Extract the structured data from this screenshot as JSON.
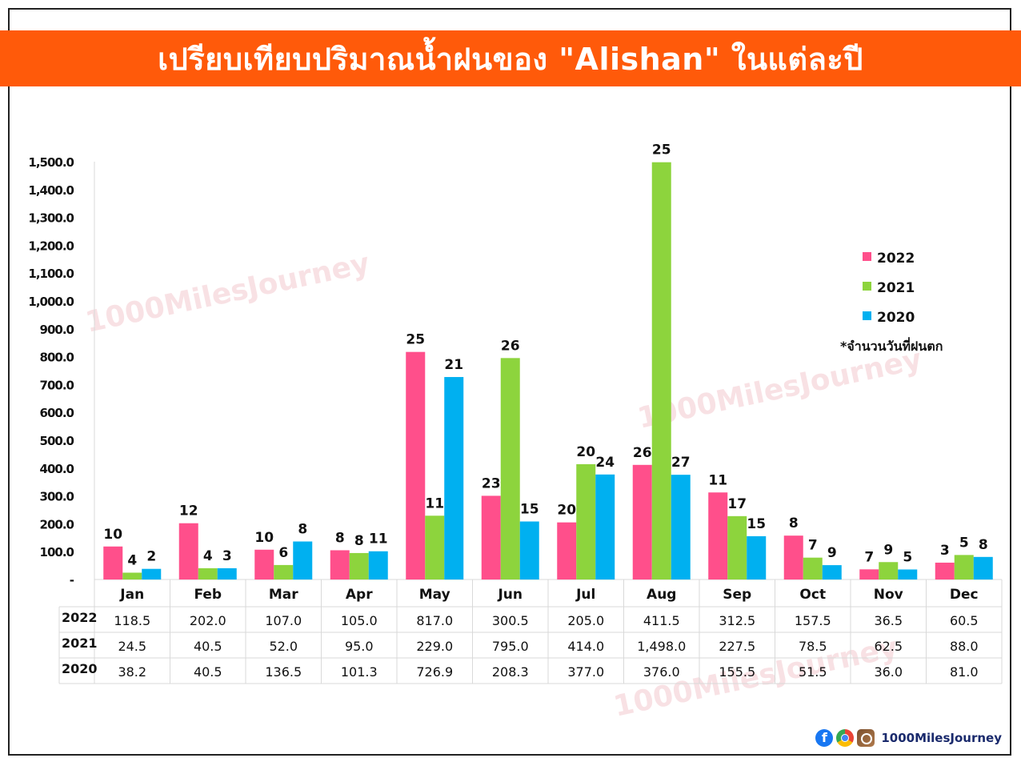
{
  "title": "เปรียบเทียบปริมาณน้ำฝนของ \"Alishan\" ในแต่ละปี",
  "legend_note": "*จำนวนวันที่ฝนตก",
  "watermark": "1000MilesJourney",
  "footer": {
    "brand": "1000MilesJourney",
    "icons": [
      "facebook-icon",
      "chrome-icon",
      "instagram-icon"
    ]
  },
  "colors": {
    "banner": "#ff5a0a",
    "2022": "#ff4f8b",
    "2021": "#8dd43d",
    "2020": "#00b0f0"
  },
  "chart_data": {
    "type": "bar",
    "title": "",
    "xlabel": "",
    "ylabel": "",
    "ylim": [
      0,
      1500
    ],
    "yticks": [
      "-",
      "100.0",
      "200.0",
      "300.0",
      "400.0",
      "500.0",
      "600.0",
      "700.0",
      "800.0",
      "900.0",
      "1,000.0",
      "1,100.0",
      "1,200.0",
      "1,300.0",
      "1,400.0",
      "1,500.0"
    ],
    "categories": [
      "Jan",
      "Feb",
      "Mar",
      "Apr",
      "May",
      "Jun",
      "Jul",
      "Aug",
      "Sep",
      "Oct",
      "Nov",
      "Dec"
    ],
    "legend_position": "right",
    "series": [
      {
        "name": "2022",
        "color": "#ff4f8b",
        "values": [
          118.5,
          202.0,
          107.0,
          105.0,
          817.0,
          300.5,
          205.0,
          411.5,
          312.5,
          157.5,
          36.5,
          60.5
        ],
        "table_values": [
          "118.5",
          "202.0",
          "107.0",
          "105.0",
          "817.0",
          "300.5",
          "205.0",
          "411.5",
          "312.5",
          "157.5",
          "36.5",
          "60.5"
        ],
        "rain_days": [
          10,
          12,
          10,
          8,
          25,
          23,
          20,
          26,
          11,
          8,
          7,
          3
        ]
      },
      {
        "name": "2021",
        "color": "#8dd43d",
        "values": [
          24.5,
          40.5,
          52.0,
          95.0,
          229.0,
          795.0,
          414.0,
          1498.0,
          227.5,
          78.5,
          62.5,
          88.0
        ],
        "table_values": [
          "24.5",
          "40.5",
          "52.0",
          "95.0",
          "229.0",
          "795.0",
          "414.0",
          "1,498.0",
          "227.5",
          "78.5",
          "62.5",
          "88.0"
        ],
        "rain_days": [
          4,
          4,
          6,
          8,
          11,
          26,
          20,
          25,
          17,
          7,
          9,
          5
        ]
      },
      {
        "name": "2020",
        "color": "#00b0f0",
        "values": [
          38.2,
          40.5,
          136.5,
          101.3,
          726.9,
          208.3,
          377.0,
          376.0,
          155.5,
          51.5,
          36.0,
          81.0
        ],
        "table_values": [
          "38.2",
          "40.5",
          "136.5",
          "101.3",
          "726.9",
          "208.3",
          "377.0",
          "376.0",
          "155.5",
          "51.5",
          "36.0",
          "81.0"
        ],
        "rain_days": [
          2,
          3,
          8,
          11,
          21,
          15,
          24,
          27,
          15,
          9,
          5,
          8
        ]
      }
    ]
  }
}
